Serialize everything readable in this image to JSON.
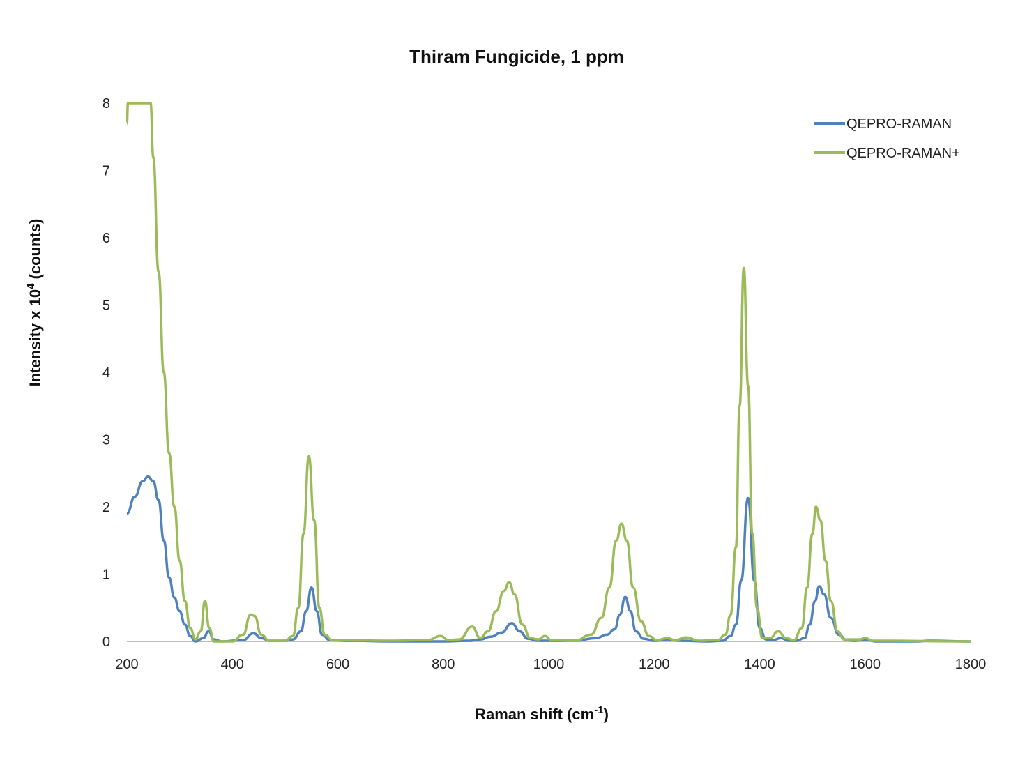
{
  "chart_data": {
    "type": "line",
    "title": "Thiram Fungicide, 1 ppm",
    "xlabel": "Raman shift (cm",
    "xlabel_sup": "-1",
    "xlabel_end": ")",
    "ylabel": "Intensity x 10",
    "ylabel_sup": "4",
    "ylabel_end": " (counts)",
    "xlim": [
      200,
      1800
    ],
    "ylim": [
      0,
      8
    ],
    "x_ticks": [
      "200",
      "400",
      "600",
      "800",
      "1000",
      "1200",
      "1400",
      "1600",
      "1800"
    ],
    "y_ticks": [
      "0",
      "1",
      "2",
      "3",
      "4",
      "5",
      "6",
      "7",
      "8"
    ],
    "grid": false,
    "legend_position": "top-right",
    "series": [
      {
        "name": "QEPRO-RAMAN",
        "color": "#4f81bd",
        "points": [
          [
            200,
            1.9
          ],
          [
            215,
            2.15
          ],
          [
            230,
            2.38
          ],
          [
            240,
            2.45
          ],
          [
            250,
            2.38
          ],
          [
            260,
            2.1
          ],
          [
            270,
            1.5
          ],
          [
            280,
            0.95
          ],
          [
            290,
            0.65
          ],
          [
            300,
            0.45
          ],
          [
            310,
            0.25
          ],
          [
            320,
            0.08
          ],
          [
            330,
            0.0
          ],
          [
            345,
            0.05
          ],
          [
            355,
            0.15
          ],
          [
            365,
            0.03
          ],
          [
            380,
            0.0
          ],
          [
            420,
            0.02
          ],
          [
            440,
            0.12
          ],
          [
            455,
            0.05
          ],
          [
            470,
            0.01
          ],
          [
            500,
            0.01
          ],
          [
            515,
            0.03
          ],
          [
            530,
            0.15
          ],
          [
            540,
            0.45
          ],
          [
            550,
            0.8
          ],
          [
            560,
            0.45
          ],
          [
            570,
            0.1
          ],
          [
            585,
            0.02
          ],
          [
            620,
            0.01
          ],
          [
            700,
            0.0
          ],
          [
            800,
            0.0
          ],
          [
            850,
            0.01
          ],
          [
            870,
            0.03
          ],
          [
            890,
            0.07
          ],
          [
            910,
            0.13
          ],
          [
            930,
            0.27
          ],
          [
            945,
            0.15
          ],
          [
            960,
            0.04
          ],
          [
            980,
            0.01
          ],
          [
            1050,
            0.01
          ],
          [
            1090,
            0.05
          ],
          [
            1110,
            0.1
          ],
          [
            1125,
            0.18
          ],
          [
            1135,
            0.4
          ],
          [
            1145,
            0.66
          ],
          [
            1155,
            0.45
          ],
          [
            1165,
            0.15
          ],
          [
            1180,
            0.04
          ],
          [
            1200,
            0.01
          ],
          [
            1225,
            0.03
          ],
          [
            1250,
            0.01
          ],
          [
            1300,
            0.0
          ],
          [
            1330,
            0.01
          ],
          [
            1345,
            0.08
          ],
          [
            1355,
            0.25
          ],
          [
            1365,
            0.9
          ],
          [
            1378,
            2.13
          ],
          [
            1390,
            0.9
          ],
          [
            1400,
            0.2
          ],
          [
            1412,
            0.03
          ],
          [
            1425,
            0.02
          ],
          [
            1440,
            0.05
          ],
          [
            1455,
            0.01
          ],
          [
            1470,
            0.01
          ],
          [
            1485,
            0.05
          ],
          [
            1495,
            0.25
          ],
          [
            1505,
            0.6
          ],
          [
            1513,
            0.82
          ],
          [
            1522,
            0.7
          ],
          [
            1535,
            0.35
          ],
          [
            1550,
            0.1
          ],
          [
            1565,
            0.02
          ],
          [
            1580,
            0.01
          ],
          [
            1600,
            0.03
          ],
          [
            1620,
            0.0
          ],
          [
            1700,
            0.0
          ],
          [
            1720,
            0.01
          ],
          [
            1800,
            0.0
          ]
        ]
      },
      {
        "name": "QEPRO-RAMAN+",
        "color": "#9bbb59",
        "points": [
          [
            200,
            7.7
          ],
          [
            202,
            8.0
          ],
          [
            245,
            8.0
          ],
          [
            250,
            7.2
          ],
          [
            260,
            5.5
          ],
          [
            270,
            4.0
          ],
          [
            280,
            2.8
          ],
          [
            290,
            2.0
          ],
          [
            300,
            1.2
          ],
          [
            310,
            0.6
          ],
          [
            320,
            0.2
          ],
          [
            330,
            0.03
          ],
          [
            340,
            0.15
          ],
          [
            348,
            0.6
          ],
          [
            356,
            0.2
          ],
          [
            365,
            0.0
          ],
          [
            400,
            0.0
          ],
          [
            420,
            0.1
          ],
          [
            435,
            0.4
          ],
          [
            442,
            0.38
          ],
          [
            455,
            0.1
          ],
          [
            470,
            0.01
          ],
          [
            500,
            0.01
          ],
          [
            515,
            0.08
          ],
          [
            525,
            0.5
          ],
          [
            535,
            1.6
          ],
          [
            545,
            2.75
          ],
          [
            555,
            1.8
          ],
          [
            565,
            0.5
          ],
          [
            575,
            0.1
          ],
          [
            590,
            0.02
          ],
          [
            700,
            0.01
          ],
          [
            770,
            0.02
          ],
          [
            795,
            0.08
          ],
          [
            810,
            0.02
          ],
          [
            830,
            0.03
          ],
          [
            855,
            0.22
          ],
          [
            870,
            0.05
          ],
          [
            885,
            0.15
          ],
          [
            900,
            0.45
          ],
          [
            915,
            0.75
          ],
          [
            925,
            0.88
          ],
          [
            935,
            0.7
          ],
          [
            950,
            0.25
          ],
          [
            965,
            0.05
          ],
          [
            980,
            0.03
          ],
          [
            993,
            0.08
          ],
          [
            1005,
            0.02
          ],
          [
            1050,
            0.01
          ],
          [
            1080,
            0.1
          ],
          [
            1100,
            0.35
          ],
          [
            1115,
            0.8
          ],
          [
            1128,
            1.5
          ],
          [
            1138,
            1.75
          ],
          [
            1148,
            1.5
          ],
          [
            1160,
            0.8
          ],
          [
            1175,
            0.3
          ],
          [
            1190,
            0.08
          ],
          [
            1205,
            0.02
          ],
          [
            1225,
            0.05
          ],
          [
            1240,
            0.02
          ],
          [
            1260,
            0.06
          ],
          [
            1285,
            0.01
          ],
          [
            1320,
            0.02
          ],
          [
            1335,
            0.1
          ],
          [
            1345,
            0.4
          ],
          [
            1355,
            1.4
          ],
          [
            1362,
            3.5
          ],
          [
            1370,
            5.55
          ],
          [
            1378,
            3.8
          ],
          [
            1386,
            1.6
          ],
          [
            1395,
            0.5
          ],
          [
            1405,
            0.05
          ],
          [
            1420,
            0.05
          ],
          [
            1435,
            0.15
          ],
          [
            1450,
            0.05
          ],
          [
            1465,
            0.02
          ],
          [
            1480,
            0.2
          ],
          [
            1490,
            0.8
          ],
          [
            1500,
            1.6
          ],
          [
            1507,
            2.0
          ],
          [
            1515,
            1.8
          ],
          [
            1525,
            1.2
          ],
          [
            1535,
            0.6
          ],
          [
            1548,
            0.15
          ],
          [
            1560,
            0.03
          ],
          [
            1590,
            0.03
          ],
          [
            1600,
            0.05
          ],
          [
            1615,
            0.01
          ],
          [
            1800,
            0.0
          ]
        ]
      }
    ]
  }
}
